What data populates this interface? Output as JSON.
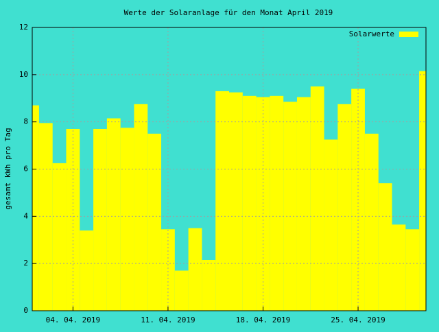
{
  "chart_data": {
    "type": "bar",
    "title": "Werte der Solaranlage für den Monat April 2019",
    "y_label": "gesamt kWh pro Tag",
    "x": [
      1,
      2,
      3,
      4,
      5,
      6,
      7,
      8,
      9,
      10,
      11,
      12,
      13,
      14,
      15,
      16,
      17,
      18,
      19,
      20,
      21,
      22,
      23,
      24,
      25,
      26,
      27,
      28,
      29,
      30
    ],
    "series": [
      {
        "name": "Solarwerte",
        "color": "#ffff00",
        "values": [
          8.7,
          7.95,
          6.25,
          7.7,
          3.4,
          7.7,
          8.15,
          7.75,
          8.75,
          7.5,
          3.45,
          1.7,
          3.5,
          2.15,
          9.3,
          9.25,
          9.1,
          9.05,
          9.1,
          8.85,
          9.05,
          9.5,
          7.25,
          8.75,
          9.4,
          7.5,
          5.4,
          3.65,
          3.45,
          10.15
        ]
      }
    ],
    "xlim": [
      1,
      30
    ],
    "xticks": [
      {
        "value": 4,
        "label": "04. 04. 2019"
      },
      {
        "value": 11,
        "label": "11. 04. 2019"
      },
      {
        "value": 18,
        "label": "18. 04. 2019"
      },
      {
        "value": 25,
        "label": "25. 04. 2019"
      }
    ],
    "ylim": [
      0,
      12
    ],
    "yticks": [
      0,
      2,
      4,
      6,
      8,
      10,
      12
    ],
    "grid": true,
    "legend": "top-right"
  }
}
